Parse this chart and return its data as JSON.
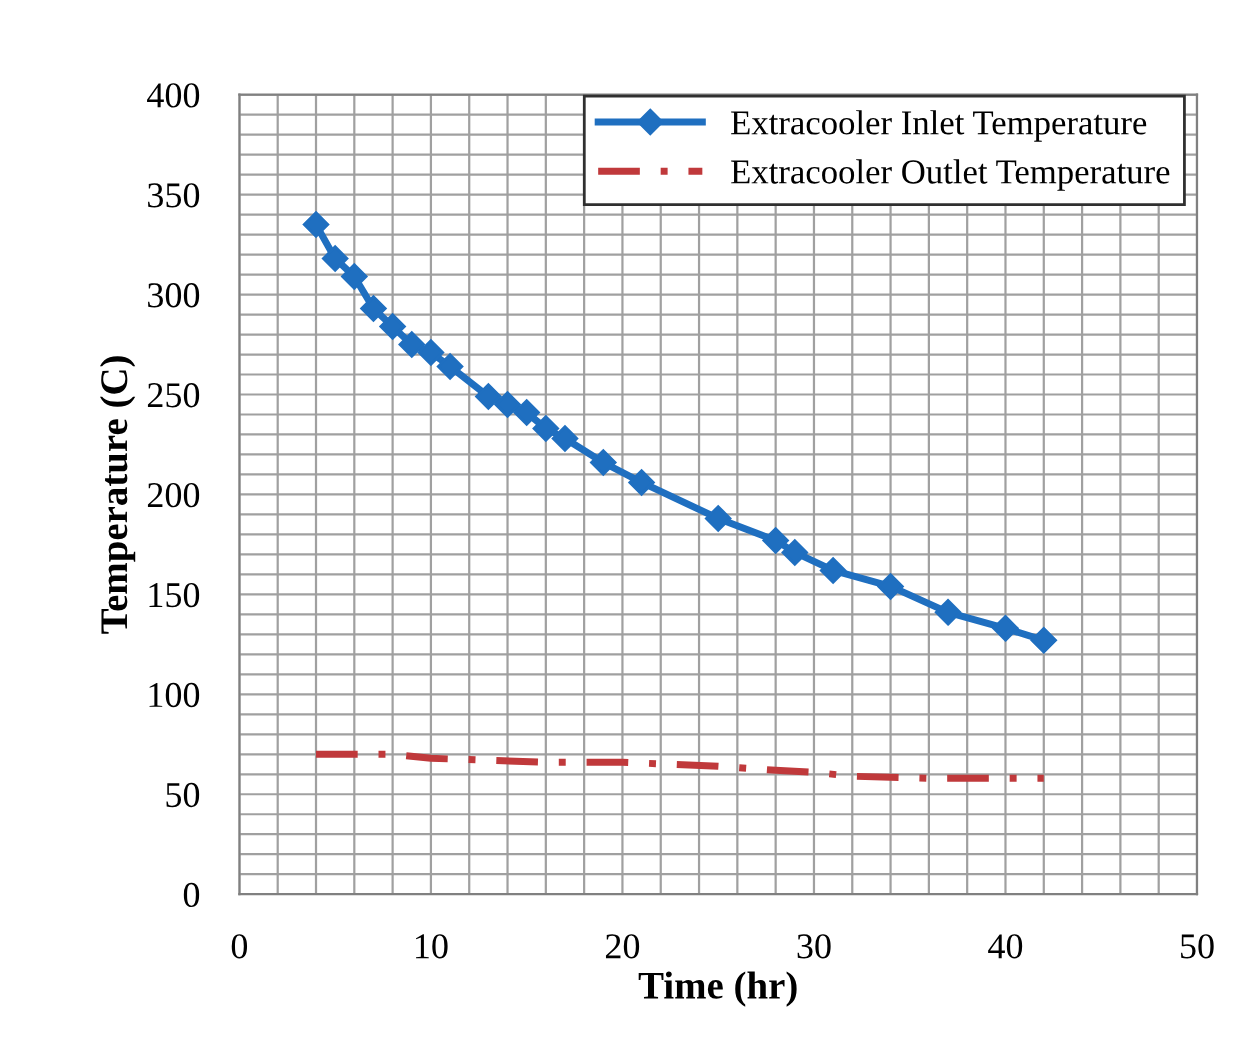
{
  "chart_data": {
    "type": "line",
    "xlabel": "Time (hr)",
    "ylabel": "Temperature (C)",
    "xlim": [
      0,
      50
    ],
    "ylim": [
      0,
      400
    ],
    "xticks": [
      0,
      {
        "value": 2,
        "label": null
      },
      {
        "value": 4,
        "label": null
      },
      {
        "value": 6,
        "label": null
      },
      {
        "value": 8,
        "label": null
      },
      10,
      {
        "value": 12,
        "label": null
      },
      {
        "value": 14,
        "label": null
      },
      {
        "value": 16,
        "label": null
      },
      {
        "value": 18,
        "label": null
      },
      20,
      {
        "value": 22,
        "label": null
      },
      {
        "value": 24,
        "label": null
      },
      {
        "value": 26,
        "label": null
      },
      {
        "value": 28,
        "label": null
      },
      30,
      {
        "value": 32,
        "label": null
      },
      {
        "value": 34,
        "label": null
      },
      {
        "value": 36,
        "label": null
      },
      {
        "value": 38,
        "label": null
      },
      40,
      {
        "value": 42,
        "label": null
      },
      {
        "value": 44,
        "label": null
      },
      {
        "value": 46,
        "label": null
      },
      {
        "value": 48,
        "label": null
      },
      50
    ],
    "yticks": [
      0,
      {
        "value": 10,
        "label": null
      },
      {
        "value": 20,
        "label": null
      },
      {
        "value": 30,
        "label": null
      },
      {
        "value": 40,
        "label": null
      },
      50,
      {
        "value": 60,
        "label": null
      },
      {
        "value": 70,
        "label": null
      },
      {
        "value": 80,
        "label": null
      },
      {
        "value": 90,
        "label": null
      },
      100,
      {
        "value": 110,
        "label": null
      },
      {
        "value": 120,
        "label": null
      },
      {
        "value": 130,
        "label": null
      },
      {
        "value": 140,
        "label": null
      },
      150,
      {
        "value": 160,
        "label": null
      },
      {
        "value": 170,
        "label": null
      },
      {
        "value": 180,
        "label": null
      },
      {
        "value": 190,
        "label": null
      },
      200,
      {
        "value": 210,
        "label": null
      },
      {
        "value": 220,
        "label": null
      },
      {
        "value": 230,
        "label": null
      },
      {
        "value": 240,
        "label": null
      },
      250,
      {
        "value": 260,
        "label": null
      },
      {
        "value": 270,
        "label": null
      },
      {
        "value": 280,
        "label": null
      },
      {
        "value": 290,
        "label": null
      },
      300,
      {
        "value": 310,
        "label": null
      },
      {
        "value": 320,
        "label": null
      },
      {
        "value": 330,
        "label": null
      },
      {
        "value": 340,
        "label": null
      },
      350,
      {
        "value": 360,
        "label": null
      },
      {
        "value": 370,
        "label": null
      },
      {
        "value": 380,
        "label": null
      },
      {
        "value": 390,
        "label": null
      },
      400
    ],
    "grid": true,
    "legend": "top right",
    "series": [
      {
        "name": "Extracooler Inlet Temperature",
        "color": "#1f6fc0",
        "marker": "diamond",
        "line_style": "solid",
        "x": [
          4,
          5,
          6,
          7,
          8,
          9,
          10,
          11,
          13,
          14,
          15,
          16,
          17,
          19,
          21,
          25,
          28,
          29,
          31,
          34,
          37,
          40,
          42
        ],
        "values": [
          335,
          318,
          309,
          293,
          284,
          275,
          271,
          264,
          249,
          245,
          241,
          233,
          228,
          216,
          206,
          188,
          177,
          171,
          162,
          154,
          141,
          133,
          127
        ]
      },
      {
        "name": "Extracooler Outlet Temperature",
        "color": "#c0393b",
        "marker": "none",
        "line_style": "dashdot",
        "x": [
          4,
          6,
          8,
          10,
          13,
          16,
          18,
          20,
          25,
          28,
          30,
          32,
          36,
          40,
          42
        ],
        "values": [
          70,
          70,
          70,
          68,
          67,
          66,
          66,
          66,
          64,
          62,
          61,
          59,
          58,
          58,
          58
        ]
      }
    ]
  }
}
